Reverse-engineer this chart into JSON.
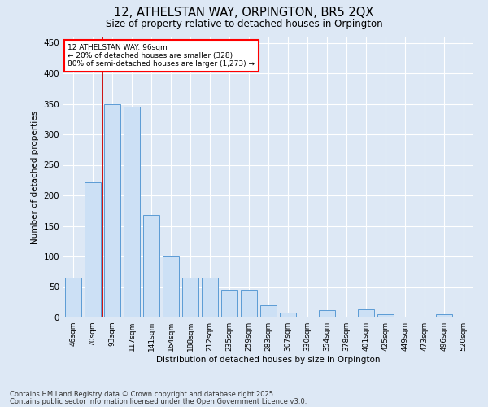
{
  "title_line1": "12, ATHELSTAN WAY, ORPINGTON, BR5 2QX",
  "title_line2": "Size of property relative to detached houses in Orpington",
  "xlabel": "Distribution of detached houses by size in Orpington",
  "ylabel": "Number of detached properties",
  "bar_labels": [
    "46sqm",
    "70sqm",
    "93sqm",
    "117sqm",
    "141sqm",
    "164sqm",
    "188sqm",
    "212sqm",
    "235sqm",
    "259sqm",
    "283sqm",
    "307sqm",
    "330sqm",
    "354sqm",
    "378sqm",
    "401sqm",
    "425sqm",
    "449sqm",
    "473sqm",
    "496sqm",
    "520sqm"
  ],
  "bar_values": [
    65,
    222,
    350,
    345,
    168,
    100,
    65,
    65,
    45,
    45,
    20,
    8,
    0,
    12,
    0,
    14,
    5,
    0,
    0,
    5,
    0
  ],
  "bar_color": "#cce0f5",
  "bar_edge_color": "#5b9bd5",
  "annotation_line1": "12 ATHELSTAN WAY: 96sqm",
  "annotation_line2": "← 20% of detached houses are smaller (328)",
  "annotation_line3": "80% of semi-detached houses are larger (1,273) →",
  "vline_color": "#cc0000",
  "ylim": [
    0,
    460
  ],
  "yticks": [
    0,
    50,
    100,
    150,
    200,
    250,
    300,
    350,
    400,
    450
  ],
  "bg_color": "#dde8f5",
  "footnote_line1": "Contains HM Land Registry data © Crown copyright and database right 2025.",
  "footnote_line2": "Contains public sector information licensed under the Open Government Licence v3.0."
}
